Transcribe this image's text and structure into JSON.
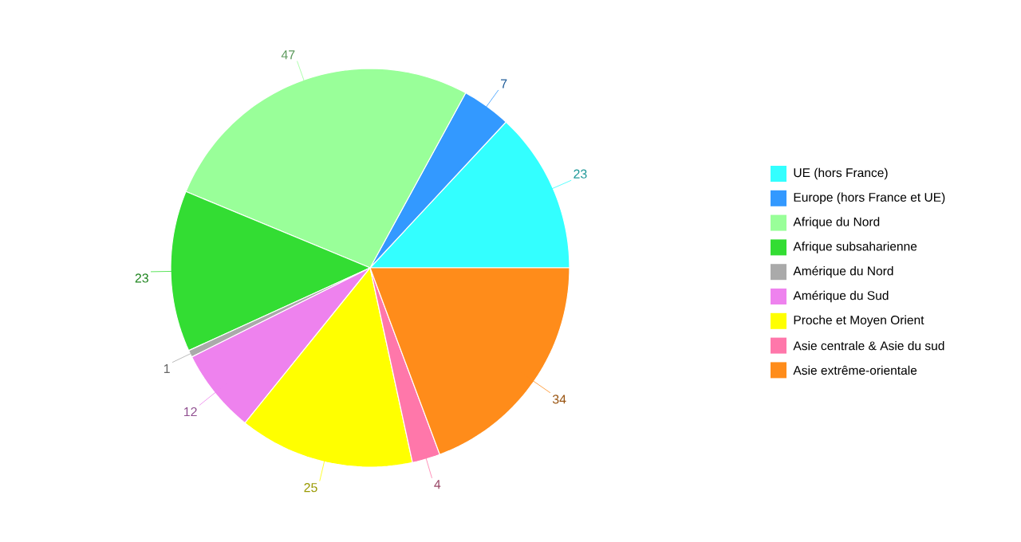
{
  "chart_data": {
    "type": "pie",
    "categories": [
      "UE (hors France)",
      "Europe (hors France et UE)",
      "Afrique du Nord",
      "Afrique subsaharienne",
      "Amérique du Nord",
      "Amérique du Sud",
      "Proche et Moyen Orient",
      "Asie centrale & Asie du sud",
      "Asie extrême-orientale"
    ],
    "values": [
      23,
      7,
      47,
      23,
      1,
      12,
      25,
      4,
      34
    ],
    "colors": [
      "#33ffff",
      "#3399ff",
      "#99ff99",
      "#33dd33",
      "#aaaaaa",
      "#ee82ee",
      "#ffff00",
      "#ff77aa",
      "#ff8c1a"
    ],
    "data_labels": true,
    "legend": "right"
  }
}
